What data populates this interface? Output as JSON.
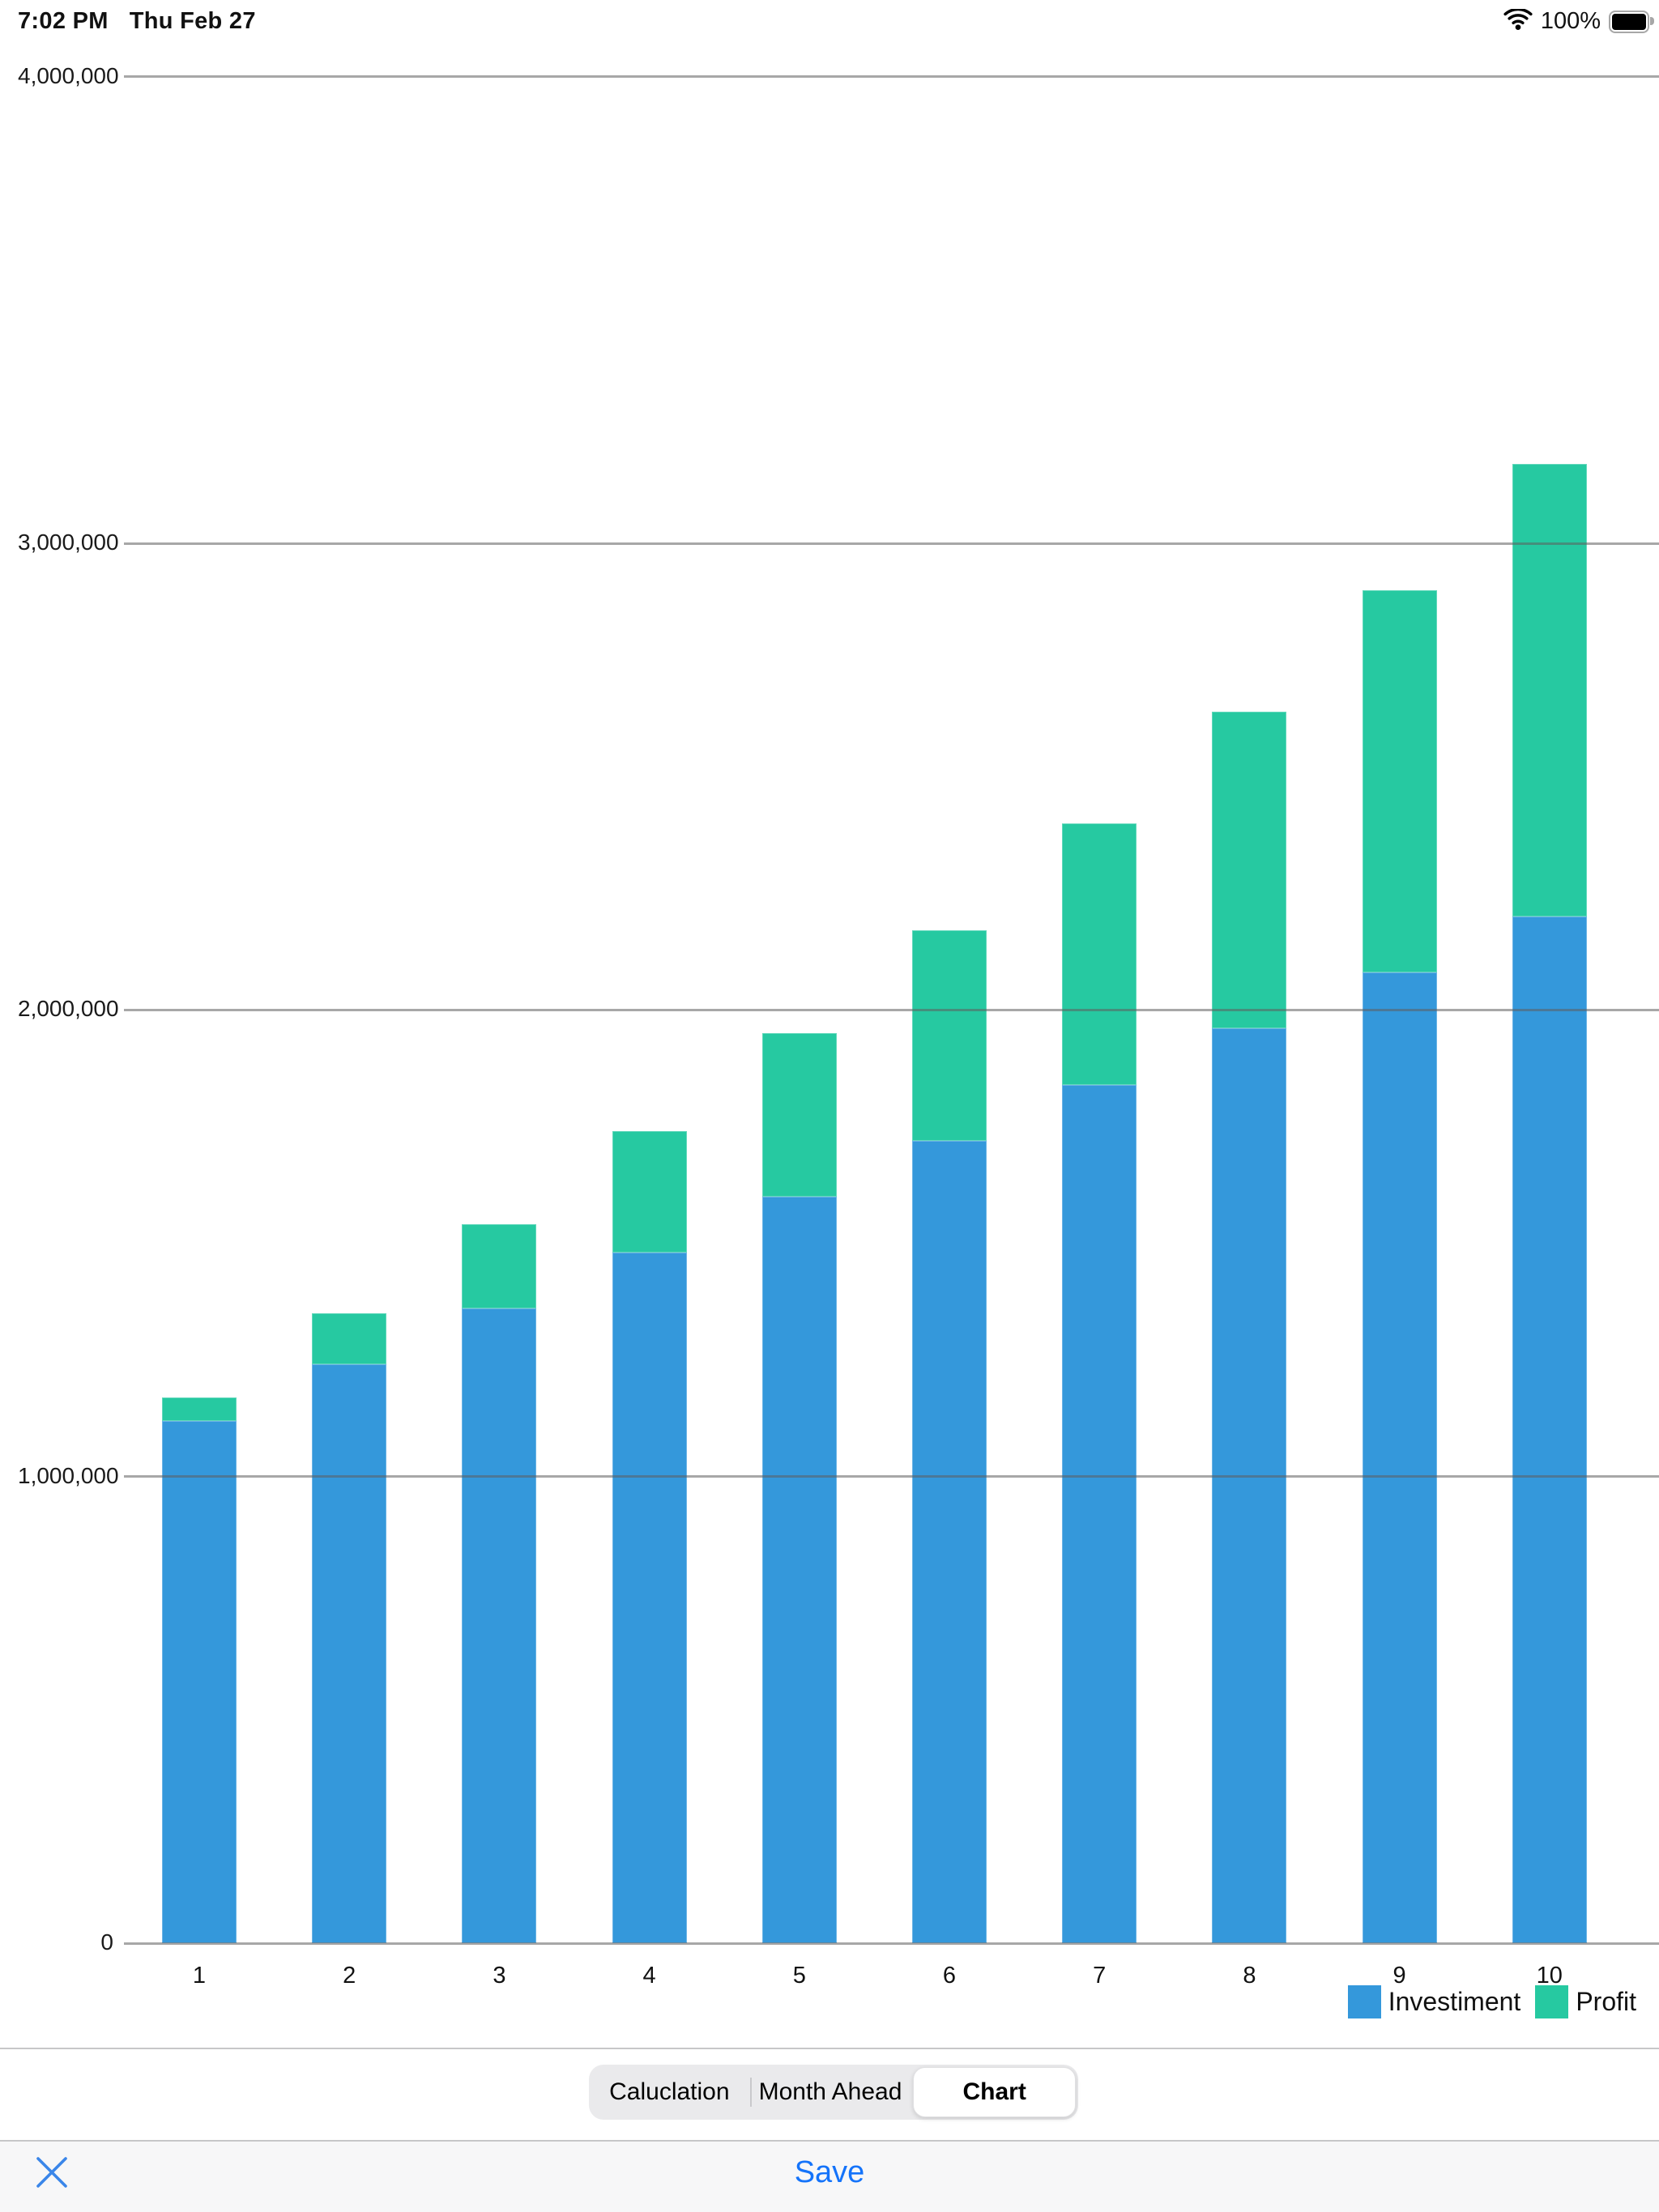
{
  "status_bar": {
    "time": "7:02 PM",
    "date": "Thu Feb 27",
    "battery_percent": "100%",
    "wifi_icon": "wifi-icon",
    "battery_icon": "battery-icon"
  },
  "chart_data": {
    "type": "bar",
    "stacked": true,
    "title": "",
    "xlabel": "",
    "ylabel": "",
    "categories": [
      "1",
      "2",
      "3",
      "4",
      "5",
      "6",
      "7",
      "8",
      "9",
      "10"
    ],
    "series": [
      {
        "name": "Investiment",
        "color": "#3498DB",
        "values": [
          1120000,
          1240000,
          1360000,
          1480000,
          1600000,
          1720000,
          1840000,
          1960000,
          2080000,
          2200000
        ]
      },
      {
        "name": "Profit",
        "color": "#26C9A1",
        "values": [
          50000,
          110000,
          180000,
          260000,
          350000,
          450000,
          560000,
          680000,
          820000,
          970000
        ]
      }
    ],
    "ylim": [
      0,
      4000000
    ],
    "yticks": [
      {
        "value": 0,
        "label": "0"
      },
      {
        "value": 1000000,
        "label": "1,000,000"
      },
      {
        "value": 2000000,
        "label": "2,000,000"
      },
      {
        "value": 3000000,
        "label": "3,000,000"
      },
      {
        "value": 4000000,
        "label": "4,000,000"
      }
    ],
    "grid": "horizontal",
    "legend_position": "bottom-right"
  },
  "segmented_control": {
    "segments": [
      {
        "label": "Caluclation",
        "selected": false
      },
      {
        "label": "Month Ahead",
        "selected": false
      },
      {
        "label": "Chart",
        "selected": true
      }
    ]
  },
  "toolbar": {
    "close_icon": "close-x-icon",
    "save_label": "Save",
    "accent_color": "#1473FA"
  }
}
